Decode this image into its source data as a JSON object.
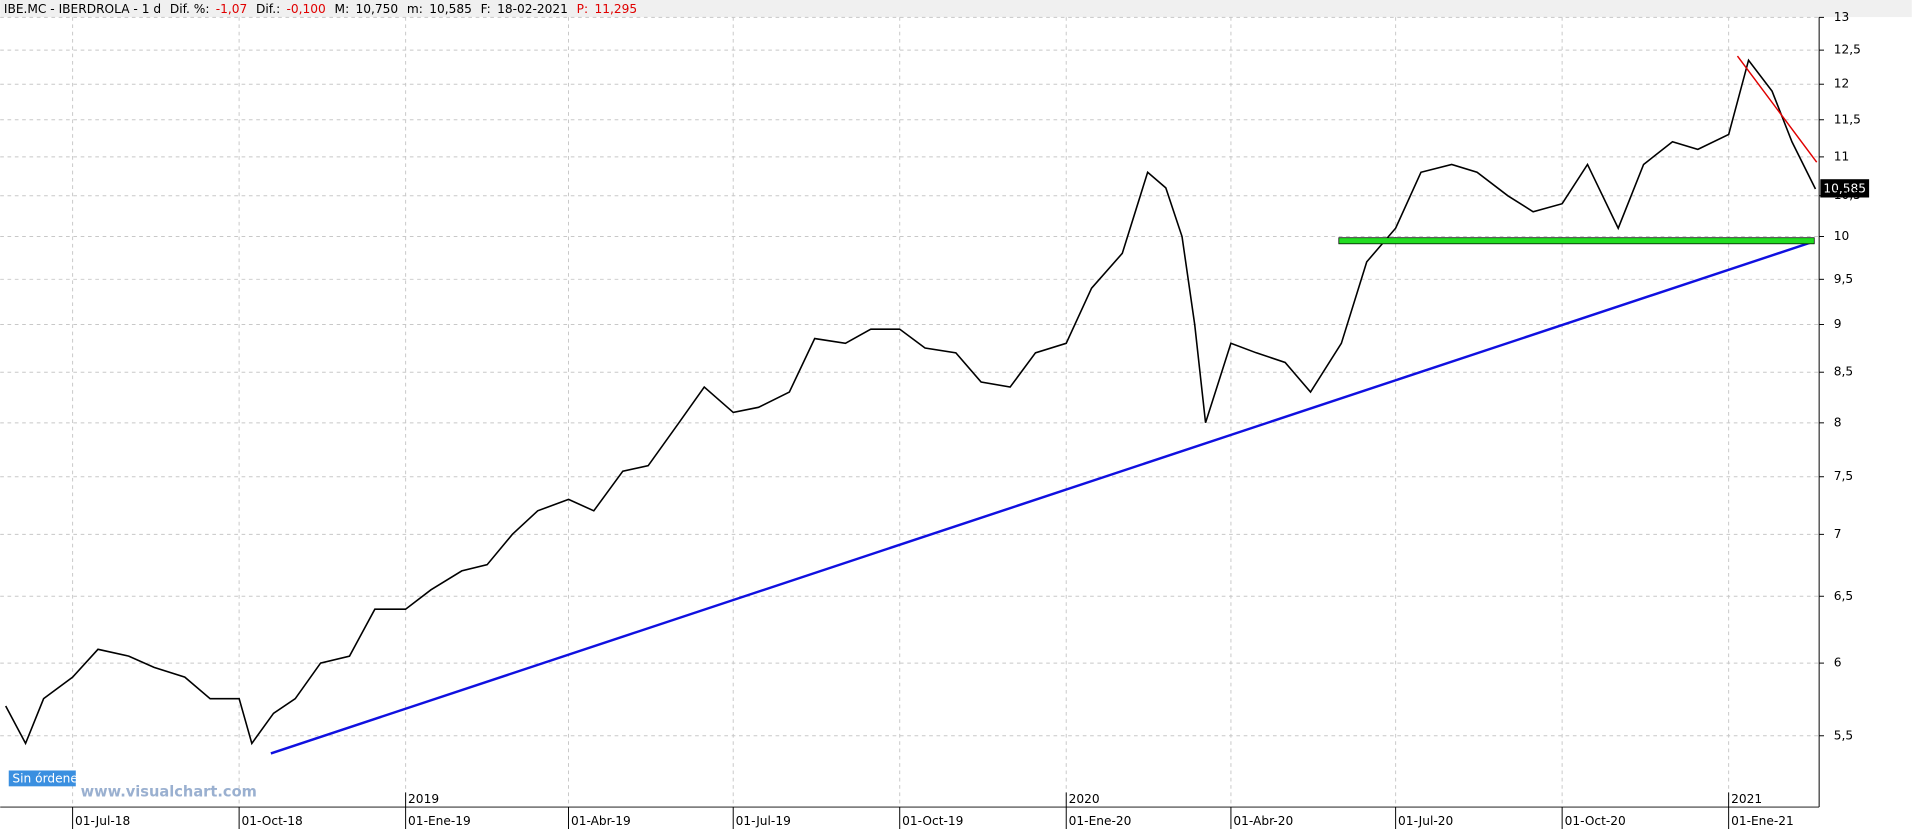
{
  "header": {
    "symbol": "IBE.MC - IBERDROLA - 1 d",
    "dif_pct_label": "Dif. %:",
    "dif_pct": "-1,07",
    "dif_label": "Dif.:",
    "dif": "-0,100",
    "max_label": "M:",
    "max": "10,750",
    "min_label": "m:",
    "min": "10,585",
    "date_label": "F:",
    "date": "18-02-2021",
    "price_label": "P:",
    "price": "11,295"
  },
  "status": "Sin órdenes",
  "watermark": "www.visualchart.com",
  "last_price_label": "10,585",
  "chart_data": {
    "type": "line",
    "log_scale": true,
    "grid": true,
    "color": "#000000",
    "x": [
      "2018-05-25",
      "2018-06-05",
      "2018-06-15",
      "2018-07-01",
      "2018-07-15",
      "2018-08-01",
      "2018-08-15",
      "2018-09-01",
      "2018-09-15",
      "2018-10-01",
      "2018-10-08",
      "2018-10-20",
      "2018-11-01",
      "2018-11-15",
      "2018-12-01",
      "2018-12-15",
      "2019-01-01",
      "2019-01-15",
      "2019-02-01",
      "2019-02-15",
      "2019-03-01",
      "2019-03-15",
      "2019-04-01",
      "2019-04-15",
      "2019-05-01",
      "2019-05-15",
      "2019-06-01",
      "2019-06-15",
      "2019-07-01",
      "2019-07-15",
      "2019-08-01",
      "2019-08-15",
      "2019-09-01",
      "2019-09-15",
      "2019-10-01",
      "2019-10-15",
      "2019-11-01",
      "2019-11-15",
      "2019-12-01",
      "2019-12-15",
      "2020-01-01",
      "2020-01-15",
      "2020-02-01",
      "2020-02-15",
      "2020-02-25",
      "2020-03-05",
      "2020-03-12",
      "2020-03-18",
      "2020-04-01",
      "2020-04-15",
      "2020-05-01",
      "2020-05-15",
      "2020-06-01",
      "2020-06-15",
      "2020-07-01",
      "2020-07-15",
      "2020-08-01",
      "2020-08-15",
      "2020-09-01",
      "2020-09-15",
      "2020-10-01",
      "2020-10-15",
      "2020-11-01",
      "2020-11-15",
      "2020-12-01",
      "2020-12-15",
      "2021-01-01",
      "2021-01-12",
      "2021-01-25",
      "2021-02-05",
      "2021-02-18"
    ],
    "values": [
      5.7,
      5.45,
      5.75,
      5.9,
      6.1,
      6.05,
      5.97,
      5.9,
      5.75,
      5.75,
      5.45,
      5.65,
      5.75,
      6.0,
      6.05,
      6.4,
      6.4,
      6.55,
      6.7,
      6.75,
      7.0,
      7.2,
      7.3,
      7.2,
      7.55,
      7.6,
      8.0,
      8.35,
      8.1,
      8.15,
      8.3,
      8.85,
      8.8,
      8.95,
      8.95,
      8.75,
      8.7,
      8.4,
      8.35,
      8.7,
      8.8,
      9.4,
      9.8,
      10.8,
      10.6,
      10.0,
      9.0,
      8.0,
      8.8,
      8.7,
      8.6,
      8.3,
      8.8,
      9.7,
      10.1,
      10.8,
      10.9,
      10.8,
      10.5,
      10.3,
      10.4,
      10.9,
      10.1,
      10.9,
      11.2,
      11.1,
      11.3,
      12.35,
      11.9,
      11.2,
      10.585
    ],
    "xlim": [
      "2018-05-22",
      "2021-02-20"
    ],
    "xticks": [
      {
        "value": "2018-07-01",
        "label": "01-Jul-18"
      },
      {
        "value": "2018-10-01",
        "label": "01-Oct-18"
      },
      {
        "value": "2019-01-01",
        "label": "01-Ene-19"
      },
      {
        "value": "2019-04-01",
        "label": "01-Abr-19"
      },
      {
        "value": "2019-07-01",
        "label": "01-Jul-19"
      },
      {
        "value": "2019-10-01",
        "label": "01-Oct-19"
      },
      {
        "value": "2020-01-01",
        "label": "01-Ene-20"
      },
      {
        "value": "2020-04-01",
        "label": "01-Abr-20"
      },
      {
        "value": "2020-07-01",
        "label": "01-Jul-20"
      },
      {
        "value": "2020-10-01",
        "label": "01-Oct-20"
      },
      {
        "value": "2021-01-01",
        "label": "01-Ene-21"
      }
    ],
    "year_ticks": [
      {
        "value": "2019-01-01",
        "label": "2019"
      },
      {
        "value": "2020-01-01",
        "label": "2020"
      },
      {
        "value": "2021-01-01",
        "label": "2021"
      }
    ],
    "ylim": [
      5.05,
      13.1
    ],
    "yticks": [
      {
        "value": 5.5,
        "label": "5,5"
      },
      6,
      {
        "value": 6.5,
        "label": "6,5"
      },
      7,
      {
        "value": 7.5,
        "label": "7,5"
      },
      8,
      {
        "value": 8.5,
        "label": "8,5"
      },
      9,
      {
        "value": 9.5,
        "label": "9,5"
      },
      10,
      {
        "value": 10.5,
        "label": "10,5"
      },
      11,
      {
        "value": 11.5,
        "label": "11,5"
      },
      12,
      {
        "value": 12.5,
        "label": "12,5"
      },
      13
    ]
  }
}
